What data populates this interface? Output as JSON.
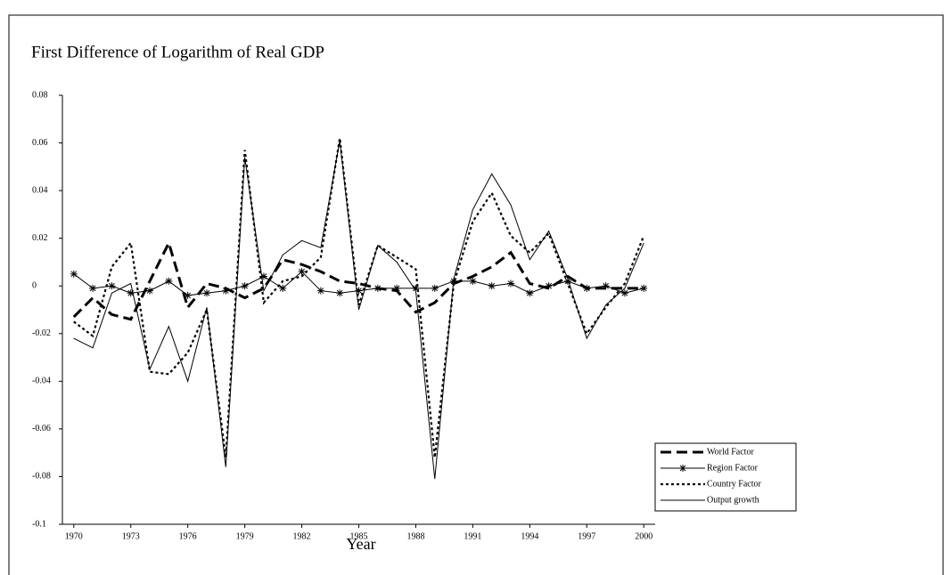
{
  "chart_data": {
    "type": "line",
    "title": "First Difference of Logarithm of Real GDP",
    "x_label": "Year",
    "x": [
      1970,
      1971,
      1972,
      1973,
      1974,
      1975,
      1976,
      1977,
      1978,
      1979,
      1980,
      1981,
      1982,
      1983,
      1984,
      1985,
      1986,
      1987,
      1988,
      1989,
      1990,
      1991,
      1992,
      1993,
      1994,
      1995,
      1996,
      1997,
      1998,
      1999,
      2000
    ],
    "xlim": [
      1969.4,
      2000.6
    ],
    "xticks": [
      1970,
      1973,
      1976,
      1979,
      1982,
      1985,
      1988,
      1991,
      1994,
      1997,
      2000
    ],
    "ylim": [
      -0.1,
      0.08
    ],
    "yticks": [
      0.08,
      0.06,
      0.04,
      0.02,
      0,
      -0.02,
      -0.04,
      -0.06,
      -0.08,
      -0.1
    ],
    "legend": "right",
    "series": [
      {
        "name": "World Factor",
        "color": "#000000",
        "dash": "12,6",
        "width": 3,
        "values": [
          -0.013,
          -0.005,
          -0.012,
          -0.014,
          0.002,
          0.018,
          -0.009,
          0.001,
          -0.001,
          -0.005,
          -0.001,
          0.011,
          0.009,
          0.006,
          0.002,
          0.001,
          -0.001,
          -0.002,
          -0.011,
          -0.007,
          0.001,
          0.004,
          0.008,
          0.014,
          0.001,
          -0.001,
          0.004,
          -0.001,
          -0.001,
          -0.001,
          -0.001
        ]
      },
      {
        "name": "Region Factor",
        "color": "#000000",
        "dash": "none",
        "width": 1,
        "marker": "asterisk",
        "values": [
          0.005,
          -0.001,
          0.0,
          -0.003,
          -0.002,
          0.002,
          -0.004,
          -0.003,
          -0.002,
          0.0,
          0.004,
          -0.001,
          0.006,
          -0.002,
          -0.003,
          -0.002,
          -0.001,
          -0.001,
          -0.001,
          -0.001,
          0.002,
          0.002,
          0.0,
          0.001,
          -0.003,
          0.0,
          0.002,
          -0.001,
          0.0,
          -0.003,
          -0.001
        ]
      },
      {
        "name": "Country Factor",
        "color": "#000000",
        "dash": "3,3",
        "width": 2.2,
        "values": [
          -0.015,
          -0.021,
          0.008,
          0.018,
          -0.036,
          -0.037,
          -0.028,
          -0.01,
          -0.072,
          0.057,
          -0.007,
          0.002,
          0.004,
          0.012,
          0.062,
          -0.008,
          0.017,
          0.012,
          0.007,
          -0.072,
          0.001,
          0.027,
          0.039,
          0.021,
          0.014,
          0.022,
          0.001,
          -0.02,
          -0.009,
          0.001,
          0.021
        ]
      },
      {
        "name": "Output growth",
        "color": "#000000",
        "dash": "none",
        "width": 1,
        "values": [
          -0.022,
          -0.026,
          -0.003,
          0.001,
          -0.035,
          -0.017,
          -0.04,
          -0.009,
          -0.076,
          0.054,
          -0.002,
          0.013,
          0.019,
          0.016,
          0.061,
          -0.01,
          0.017,
          0.01,
          -0.002,
          -0.081,
          0.003,
          0.032,
          0.047,
          0.034,
          0.011,
          0.023,
          0.003,
          -0.022,
          -0.008,
          -0.001,
          0.018
        ]
      }
    ]
  }
}
